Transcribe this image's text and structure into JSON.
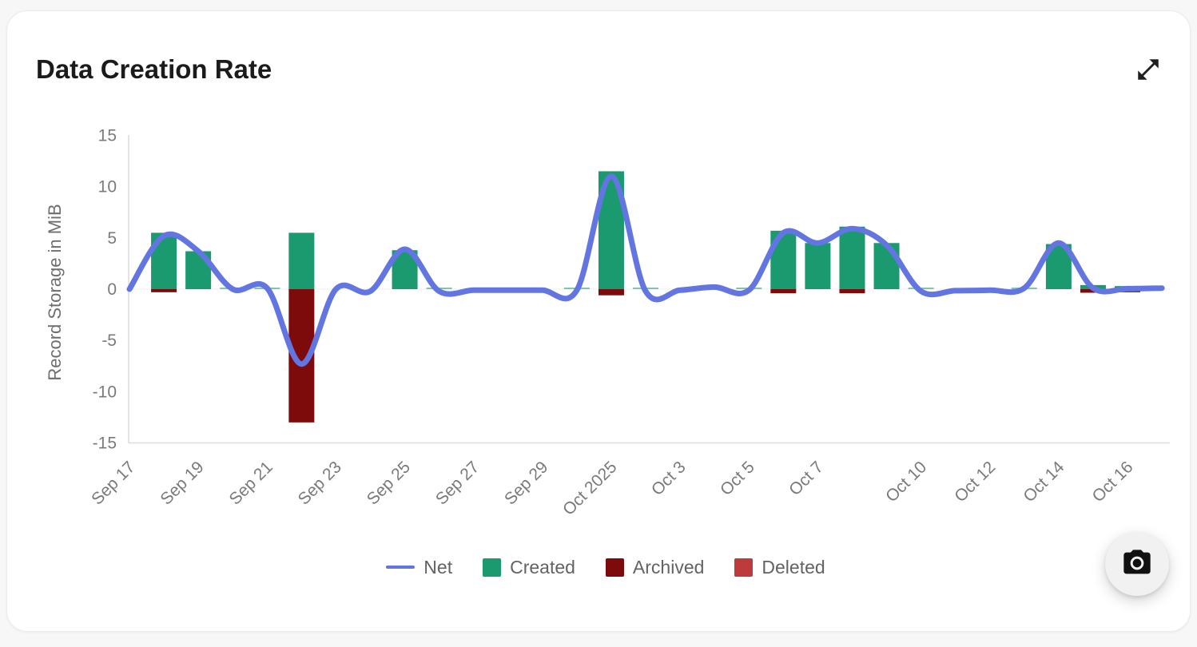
{
  "card": {
    "title": "Data Creation Rate"
  },
  "colors": {
    "background": "#f7f7f7",
    "card": "#ffffff",
    "net_line": "#6375E0",
    "created": "#1A9A6E",
    "archived": "#7D0B0B",
    "deleted": "#BE3B3B",
    "axis": "#dcdcdc",
    "tick_text": "#7a7a7a"
  },
  "chart_data": {
    "type": "mixed-bar-line",
    "title": "Data Creation Rate",
    "xlabel": "",
    "ylabel": "Record Storage in MiB",
    "ylim": [
      -15,
      15
    ],
    "yticks": [
      15,
      10,
      5,
      0,
      -5,
      -10,
      -15
    ],
    "grid": false,
    "legend_position": "bottom",
    "x": [
      "Sep 17",
      "Sep 18",
      "Sep 19",
      "Sep 20",
      "Sep 21",
      "Sep 22",
      "Sep 23",
      "Sep 24",
      "Sep 25",
      "Sep 26",
      "Sep 27",
      "Sep 28",
      "Sep 29",
      "Sep 30",
      "Oct 1",
      "Oct 2",
      "Oct 3",
      "Oct 4",
      "Oct 5",
      "Oct 6",
      "Oct 7",
      "Oct 8",
      "Oct 9",
      "Oct 10",
      "Oct 11",
      "Oct 12",
      "Oct 13",
      "Oct 14",
      "Oct 15",
      "Oct 16",
      "Oct 17"
    ],
    "x_tick_labels": [
      {
        "label": "Sep 17",
        "i": 0
      },
      {
        "label": "Sep 19",
        "i": 2
      },
      {
        "label": "Sep 21",
        "i": 4
      },
      {
        "label": "Sep 23",
        "i": 6
      },
      {
        "label": "Sep 25",
        "i": 8
      },
      {
        "label": "Sep 27",
        "i": 10
      },
      {
        "label": "Sep 29",
        "i": 12
      },
      {
        "label": "Oct 2025",
        "i": 14
      },
      {
        "label": "Oct 3",
        "i": 16
      },
      {
        "label": "Oct 5",
        "i": 18
      },
      {
        "label": "Oct 7",
        "i": 20
      },
      {
        "label": "Oct 10",
        "i": 23
      },
      {
        "label": "Oct 12",
        "i": 25
      },
      {
        "label": "Oct 14",
        "i": 27
      },
      {
        "label": "Oct 16",
        "i": 29
      }
    ],
    "series": [
      {
        "name": "Net",
        "type": "line",
        "color": "#6375E0",
        "values": [
          0,
          5.2,
          3.7,
          0,
          0.1,
          -7.3,
          0,
          -0.2,
          3.9,
          -0.2,
          -0.1,
          -0.1,
          -0.1,
          -0.1,
          11.0,
          -0.2,
          -0.1,
          0.2,
          -0.1,
          5.5,
          4.5,
          5.9,
          4.3,
          -0.2,
          -0.15,
          -0.1,
          0.1,
          4.5,
          0.1,
          0.05,
          0.1
        ]
      },
      {
        "name": "Created",
        "type": "bar",
        "color": "#1A9A6E",
        "values": [
          0,
          5.5,
          3.7,
          0.05,
          0.05,
          5.5,
          0,
          0,
          3.8,
          0.05,
          0,
          0,
          0,
          0.05,
          11.5,
          0.05,
          0,
          0,
          0.05,
          5.7,
          4.5,
          6.1,
          4.5,
          0.05,
          0,
          0,
          0.05,
          4.4,
          0.4,
          0.3,
          0
        ]
      },
      {
        "name": "Archived",
        "type": "bar",
        "color": "#7D0B0B",
        "values": [
          0,
          -0.3,
          0,
          0,
          0,
          -13.0,
          0,
          0,
          0,
          0,
          0,
          0,
          0,
          0,
          -0.6,
          0,
          0,
          0,
          0,
          -0.4,
          0,
          -0.4,
          0,
          0,
          0,
          0,
          0,
          0,
          -0.35,
          -0.3,
          0
        ]
      },
      {
        "name": "Deleted",
        "type": "bar",
        "color": "#BE3B3B",
        "values": [
          0,
          0,
          0,
          0,
          0,
          0,
          0,
          0,
          0,
          0,
          0,
          0,
          0,
          0,
          0,
          0,
          0,
          0,
          0,
          0,
          0,
          0,
          0,
          0,
          0,
          0,
          0,
          0,
          0,
          0,
          0
        ]
      }
    ]
  },
  "legend": {
    "items": [
      {
        "label": "Net",
        "marker": "line",
        "color": "#6375E0"
      },
      {
        "label": "Created",
        "marker": "square",
        "color": "#1A9A6E"
      },
      {
        "label": "Archived",
        "marker": "square",
        "color": "#7D0B0B"
      },
      {
        "label": "Deleted",
        "marker": "square",
        "color": "#BE3B3B"
      }
    ]
  }
}
